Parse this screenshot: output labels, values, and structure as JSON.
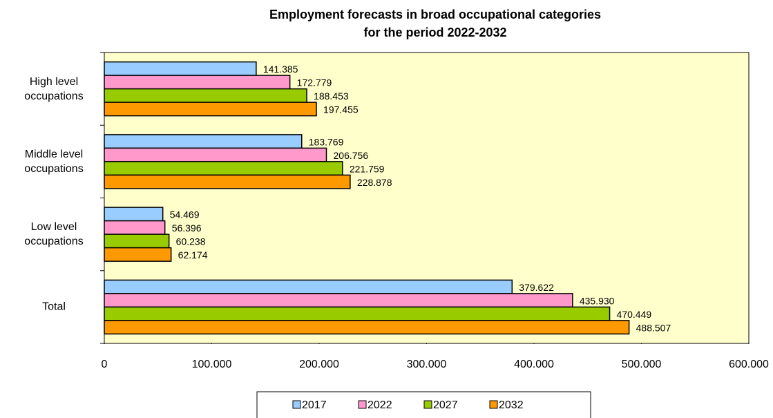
{
  "chart_data": {
    "type": "hbar",
    "title": [
      "Employment forecasts in broad occupational categories",
      "for the period 2022-2032"
    ],
    "categories": [
      "High level occupations",
      "Middle level occupations",
      "Low level occupations",
      "Total"
    ],
    "series": [
      {
        "name": "2017",
        "color": "#99ccff",
        "values": [
          141385,
          183769,
          54469,
          379622
        ],
        "value_labels": [
          "141.385",
          "183.769",
          "54.469",
          "379.622"
        ]
      },
      {
        "name": "2022",
        "color": "#ff99cc",
        "values": [
          172779,
          206756,
          56396,
          435930
        ],
        "value_labels": [
          "172.779",
          "206.756",
          "56.396",
          "435.930"
        ]
      },
      {
        "name": "2027",
        "color": "#99cc00",
        "values": [
          188453,
          221759,
          60238,
          470449
        ],
        "value_labels": [
          "188.453",
          "221.759",
          "60.238",
          "470.449"
        ]
      },
      {
        "name": "2032",
        "color": "#ff9900",
        "values": [
          197455,
          228878,
          62174,
          488507
        ],
        "value_labels": [
          "197.455",
          "228.878",
          "62.174",
          "488.507"
        ]
      }
    ],
    "xlim": [
      0,
      600000
    ],
    "xticks": [
      0,
      {
        "value": 100000,
        "label": "100.000"
      },
      {
        "value": 200000,
        "label": "200.000"
      },
      {
        "value": 300000,
        "label": "300.000"
      },
      {
        "value": 400000,
        "label": "400.000"
      },
      {
        "value": 500000,
        "label": "500.000"
      },
      {
        "value": 600000,
        "label": "600.000"
      }
    ],
    "grid": false,
    "background": "#ffffcc",
    "legend": "bottom"
  }
}
